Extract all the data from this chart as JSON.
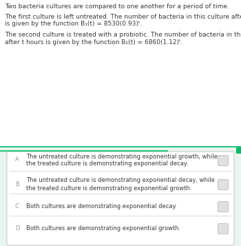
{
  "bg_color": "#e8f5f0",
  "top_bg_color": "#ffffff",
  "text_color": "#3a3a3a",
  "label_color": "#999999",
  "line1_color": "#00bb66",
  "line2_color": "#00bb66",
  "title_text": "Two bacteria cultures are compared to one another for a period of time.",
  "para1_line1": "The first culture is left untreated. The number of bacteria in this culture after t hours",
  "para1_line2": "is given by the function B₁(t) = 8530(0.93)ᵗ.",
  "para2_line1": "The second culture is treated with a probiotic. The number of bacteria in this culture",
  "para2_line2": "after t hours is given by the function B₂(t) = 6860(1.12)ᵗ.",
  "choices": [
    {
      "label": "A",
      "line1": "The untreated culture is demonstrating exponential growth, while",
      "line2": "the treated culture is demonstrating exponential decay."
    },
    {
      "label": "B",
      "line1": "The untreated culture is demonstrating exponential decay, while",
      "line2": "the treated culture is demonstrating exponential growth."
    },
    {
      "label": "C",
      "line1": "Both cultures are demonstrating exponential decay.",
      "line2": ""
    },
    {
      "label": "D",
      "line1": "Both cultures are demonstrating exponential growth.",
      "line2": ""
    }
  ],
  "choice_border_color": "#cccccc",
  "radio_face_color": "#e0e0e0",
  "radio_edge_color": "#bbbbbb",
  "font_size": 6.5,
  "label_font_size": 6.0
}
